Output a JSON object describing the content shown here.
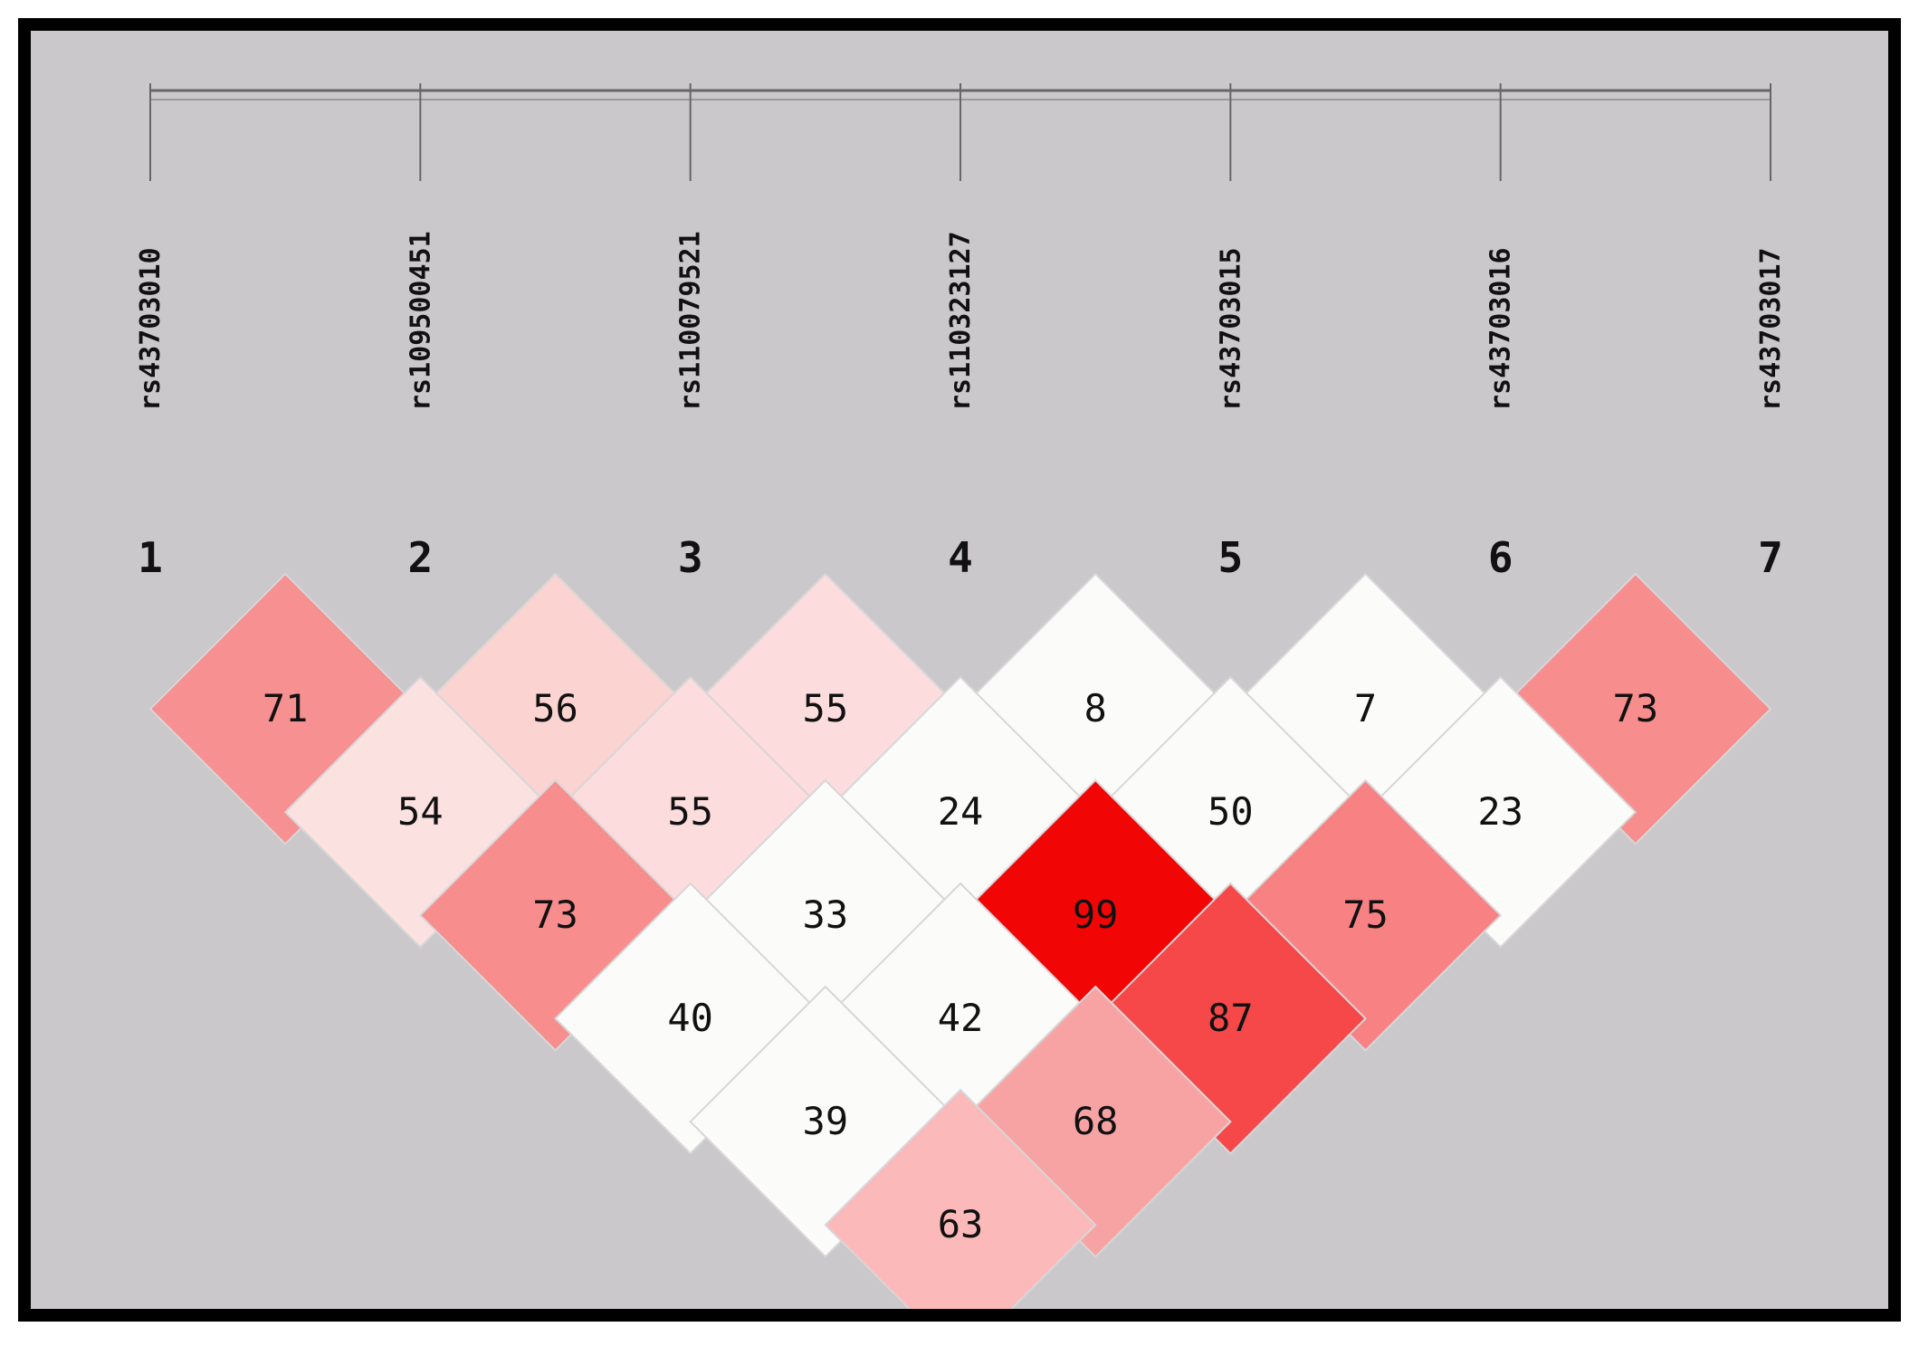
{
  "chart_data": {
    "type": "heatmap",
    "snps": [
      {
        "index": "1",
        "name": "rs43703010"
      },
      {
        "index": "2",
        "name": "rs109500451"
      },
      {
        "index": "3",
        "name": "rs110079521"
      },
      {
        "index": "4",
        "name": "rs110323127"
      },
      {
        "index": "5",
        "name": "rs43703015"
      },
      {
        "index": "6",
        "name": "rs43703016"
      },
      {
        "index": "7",
        "name": "rs43703017"
      }
    ],
    "cells": [
      {
        "i": 1,
        "j": 2,
        "value": 71,
        "color": "#f79090"
      },
      {
        "i": 2,
        "j": 3,
        "value": 56,
        "color": "#fbd3d0"
      },
      {
        "i": 3,
        "j": 4,
        "value": 55,
        "color": "#fcdcdc"
      },
      {
        "i": 4,
        "j": 5,
        "value": 8,
        "color": "#fbfbfa"
      },
      {
        "i": 5,
        "j": 6,
        "value": 7,
        "color": "#fbfbfa"
      },
      {
        "i": 6,
        "j": 7,
        "value": 73,
        "color": "#f78d8d"
      },
      {
        "i": 1,
        "j": 3,
        "value": 54,
        "color": "#fbe1df"
      },
      {
        "i": 2,
        "j": 4,
        "value": 55,
        "color": "#fcdcdc"
      },
      {
        "i": 3,
        "j": 5,
        "value": 24,
        "color": "#fbfbfa"
      },
      {
        "i": 4,
        "j": 6,
        "value": 50,
        "color": "#fbfbfa"
      },
      {
        "i": 5,
        "j": 7,
        "value": 23,
        "color": "#fbfbfa"
      },
      {
        "i": 1,
        "j": 4,
        "value": 73,
        "color": "#f78d8d"
      },
      {
        "i": 2,
        "j": 5,
        "value": 33,
        "color": "#fbfbfa"
      },
      {
        "i": 3,
        "j": 6,
        "value": 99,
        "color": "#f20505"
      },
      {
        "i": 4,
        "j": 7,
        "value": 75,
        "color": "#f88283"
      },
      {
        "i": 1,
        "j": 5,
        "value": 40,
        "color": "#fbfbfa"
      },
      {
        "i": 2,
        "j": 6,
        "value": 42,
        "color": "#fbfbfa"
      },
      {
        "i": 3,
        "j": 7,
        "value": 87,
        "color": "#f64848"
      },
      {
        "i": 1,
        "j": 6,
        "value": 39,
        "color": "#fbfbfa"
      },
      {
        "i": 2,
        "j": 7,
        "value": 68,
        "color": "#f8a3a3"
      },
      {
        "i": 1,
        "j": 7,
        "value": 63,
        "color": "#fbb9b9"
      }
    ],
    "colors": {
      "background": "#cbc8cc",
      "border": "#000000",
      "cell_outline": "#d8d6d8",
      "axis_line": "#666666"
    }
  }
}
